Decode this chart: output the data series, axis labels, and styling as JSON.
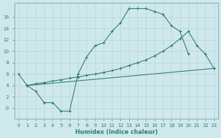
{
  "bg_color": "#cfe8ec",
  "grid_color": "#b8d8dc",
  "line_color": "#2e7d6e",
  "xlabel": "Humidex (Indice chaleur)",
  "xlim": [
    -0.5,
    23.5
  ],
  "ylim": [
    -1.8,
    18.5
  ],
  "xticks": [
    0,
    1,
    2,
    3,
    4,
    5,
    6,
    7,
    8,
    9,
    10,
    11,
    12,
    13,
    14,
    15,
    16,
    17,
    18,
    19,
    20,
    21,
    22,
    23
  ],
  "yticks": [
    0,
    2,
    4,
    6,
    8,
    10,
    12,
    14,
    16
  ],
  "ytick_labels": [
    "-0",
    "2",
    "4",
    "6",
    "8",
    "10",
    "12",
    "14",
    "16"
  ],
  "line1_x": [
    0,
    1,
    2,
    3,
    4,
    5,
    6,
    7,
    8,
    9,
    10,
    11,
    12,
    13,
    14,
    15,
    16,
    17,
    18,
    19,
    20
  ],
  "line1_y": [
    6,
    4,
    3,
    1,
    1,
    -0.5,
    -0.5,
    6,
    9,
    11,
    11.5,
    13.5,
    15.0,
    17.5,
    17.5,
    17.5,
    17.0,
    16.5,
    14.5,
    13.5,
    9.5
  ],
  "line2_x": [
    1,
    2,
    3,
    4,
    5,
    6,
    7,
    8,
    9,
    10,
    11,
    12,
    13,
    14,
    15,
    16,
    17,
    18,
    19,
    20,
    21,
    22,
    23
  ],
  "line2_y": [
    4,
    4.3,
    4.5,
    4.8,
    5.0,
    5.3,
    5.5,
    5.8,
    6.0,
    6.3,
    6.6,
    7.0,
    7.5,
    8.0,
    8.5,
    9.2,
    10.0,
    11.0,
    12.2,
    13.5,
    11.0,
    9.5,
    7.0
  ],
  "line3_x": [
    1,
    23
  ],
  "line3_y": [
    4,
    7
  ]
}
